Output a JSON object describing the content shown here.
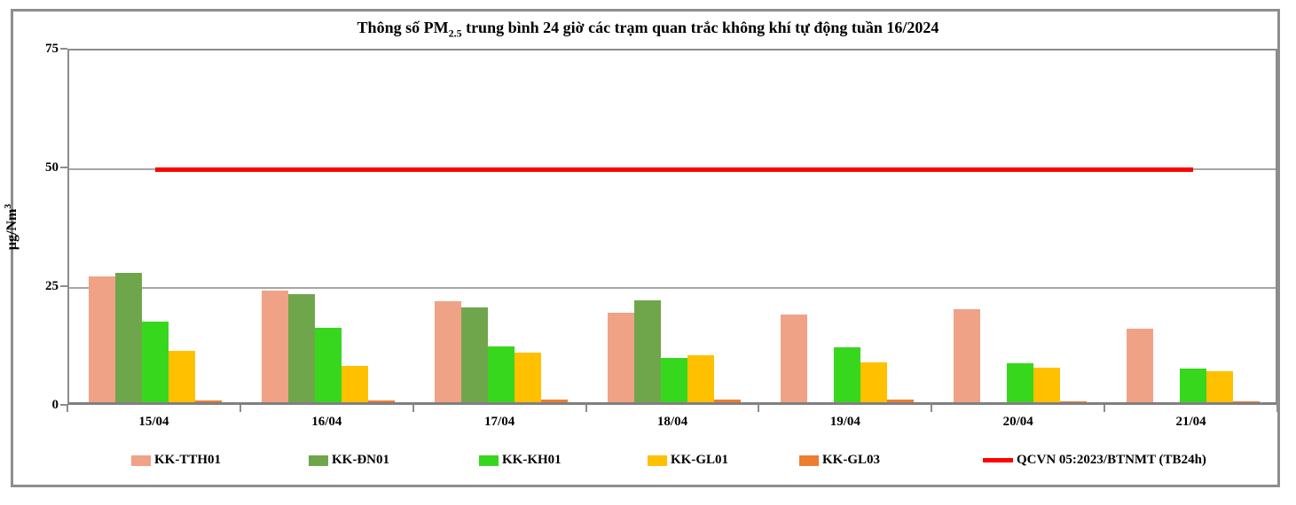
{
  "title": {
    "prefix": "Thông số PM",
    "subscript": "2.5",
    "suffix": " trung bình 24 giờ các trạm quan trắc không khí tự động tuần 16/2024"
  },
  "y_axis": {
    "label_main": "µg/Nm",
    "label_sup": "3",
    "tick_labels": [
      "0",
      "25",
      "50",
      "75"
    ]
  },
  "chart_data": {
    "type": "bar",
    "title": "Thông số PM2.5 trung bình 24 giờ các trạm quan trắc không khí tự động tuần 16/2024",
    "xlabel": "",
    "ylabel": "µg/Nm3",
    "ylim": [
      0,
      75
    ],
    "yticks": [
      0,
      25,
      50,
      75
    ],
    "grid": true,
    "legend_position": "bottom",
    "categories": [
      "15/04",
      "16/04",
      "17/04",
      "18/04",
      "19/04",
      "20/04",
      "21/04"
    ],
    "series": [
      {
        "name": "KK-TTH01",
        "color": "#F0A287",
        "values": [
          26.5,
          23.6,
          21.2,
          18.8,
          18.4,
          19.6,
          15.5
        ]
      },
      {
        "name": "KK-ĐN01",
        "color": "#6FA64C",
        "values": [
          27.3,
          22.8,
          19.9,
          21.4,
          null,
          null,
          null
        ]
      },
      {
        "name": "KK-KH01",
        "color": "#37D71E",
        "values": [
          16.9,
          15.6,
          11.7,
          9.4,
          11.5,
          8.2,
          7.0
        ]
      },
      {
        "name": "KK-GL01",
        "color": "#FFC000",
        "values": [
          10.9,
          7.7,
          10.4,
          9.9,
          8.4,
          7.2,
          6.5
        ]
      },
      {
        "name": "KK-GL03",
        "color": "#ED7D31",
        "values": [
          0.3,
          0.3,
          0.5,
          0.5,
          0.5,
          0.2,
          0.2
        ]
      }
    ],
    "ref_line": {
      "label": "QCVN 05:2023/BTNMT (TB24h)",
      "value": 50,
      "color": "#FF0000"
    }
  },
  "colors": {
    "grid": "#A6A6A6",
    "axis": "#8C8C8C",
    "frame": "#8E8E8E",
    "background": "#FFFFFF"
  }
}
